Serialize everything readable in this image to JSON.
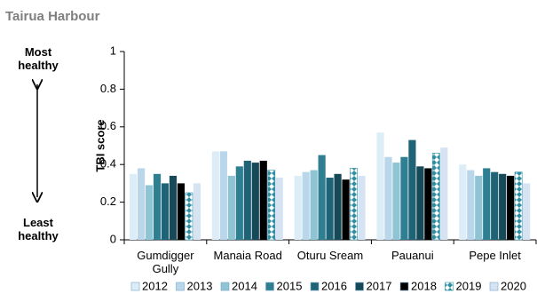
{
  "chart_data": {
    "type": "bar",
    "title": "Tairua Harbour",
    "annotations": [
      "Most healthy",
      "Least healthy"
    ],
    "y_label": "TBI score",
    "categories": [
      "Gumdigger Gully",
      "Manaia Road",
      "Oturu Sream",
      "Pauanui",
      "Pepe Inlet"
    ],
    "series": [
      {
        "name": "2012",
        "color": "#dcedf8",
        "values": [
          0.35,
          0.47,
          0.34,
          0.57,
          0.4
        ]
      },
      {
        "name": "2013",
        "color": "#b9d6eb",
        "values": [
          0.38,
          0.47,
          0.36,
          0.44,
          0.37
        ]
      },
      {
        "name": "2014",
        "color": "#8ec4d3",
        "values": [
          0.29,
          0.34,
          0.37,
          0.41,
          0.34
        ]
      },
      {
        "name": "2015",
        "color": "#2f7f93",
        "values": [
          0.35,
          0.39,
          0.45,
          0.44,
          0.38
        ]
      },
      {
        "name": "2016",
        "color": "#1e6476",
        "values": [
          0.3,
          0.42,
          0.33,
          0.53,
          0.36
        ]
      },
      {
        "name": "2017",
        "color": "#164a58",
        "values": [
          0.34,
          0.41,
          0.35,
          0.39,
          0.35
        ]
      },
      {
        "name": "2018",
        "color": "#000000",
        "values": [
          0.3,
          0.42,
          0.32,
          0.38,
          0.34
        ]
      },
      {
        "name": "2019",
        "color": "#2e8fa3",
        "pattern": "diamond",
        "values": [
          0.25,
          0.37,
          0.38,
          0.46,
          0.36
        ]
      },
      {
        "name": "2020",
        "color": "#d5e3f3",
        "values": [
          0.3,
          0.33,
          0.34,
          0.49,
          0.3
        ]
      }
    ],
    "ylim": [
      0,
      1
    ],
    "yticks": [
      0,
      0.2,
      0.4,
      0.6,
      0.8,
      1
    ],
    "grid": false,
    "legend": "bottom"
  }
}
